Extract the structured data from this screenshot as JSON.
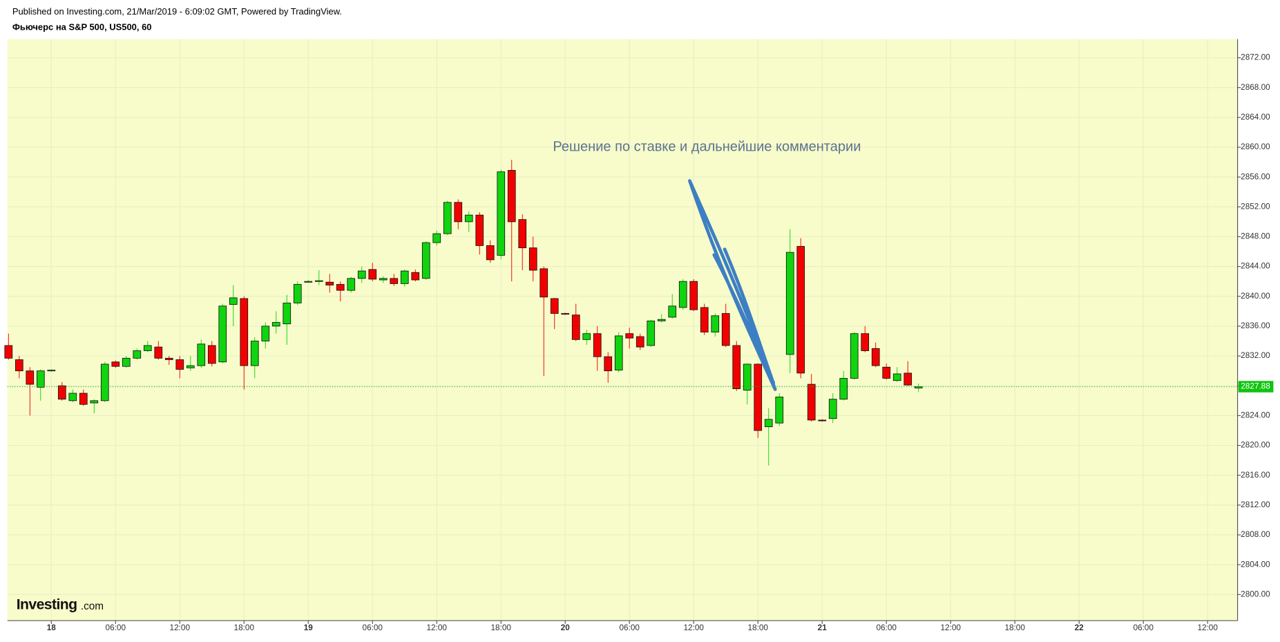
{
  "header": {
    "published": "Published on Investing.com, 21/Mar/2019 - 6:09:02 GMT, Powered by TradingView.",
    "symbol": "Фьючерс на S&P 500, US500, 60"
  },
  "logo": {
    "name": "Investing",
    "suffix": ".com"
  },
  "chart_data": {
    "type": "candlestick",
    "annotation": "Решение по ставке и дальнейшие комментарии",
    "up_color": "#10d40f",
    "down_color": "#f20000",
    "grid": true,
    "last_price": 2827.88,
    "last_price_color": "#10c40f",
    "x": [
      -4,
      -3,
      -2,
      -1,
      0,
      1,
      2,
      3,
      4,
      5,
      6,
      7,
      8,
      9,
      10,
      11,
      12,
      13,
      14,
      15,
      16,
      17,
      18,
      19,
      20,
      21,
      22,
      23,
      24,
      25,
      26,
      27,
      28,
      29,
      30,
      31,
      32,
      33,
      34,
      35,
      36,
      37,
      38,
      39,
      40,
      41,
      42,
      43,
      44,
      45,
      46,
      47,
      48,
      49,
      50,
      51,
      52,
      53,
      54,
      55,
      56,
      57,
      58,
      59,
      60,
      61,
      62,
      63,
      64,
      65,
      66,
      67,
      68,
      69,
      70,
      71,
      72,
      73,
      74,
      75,
      76,
      77,
      78,
      79,
      80,
      81
    ],
    "open": [
      2833.4,
      2831.5,
      2830,
      2827.8,
      2830,
      2828,
      2826,
      2827,
      2825.7,
      2826,
      2831.2,
      2830.6,
      2831.7,
      2832.7,
      2833.2,
      2831.7,
      2831.5,
      2830.4,
      2830.7,
      2833.4,
      2831.2,
      2838.9,
      2839.7,
      2830.7,
      2834,
      2836,
      2836.3,
      2839.1,
      2841.9,
      2842,
      2841.9,
      2841.6,
      2840.8,
      2842.4,
      2843.6,
      2842.2,
      2842.4,
      2841.7,
      2843.2,
      2842.4,
      2847.2,
      2848.4,
      2852.6,
      2850,
      2850.9,
      2846.8,
      2845.5,
      2856.9,
      2850.3,
      2846.5,
      2843.7,
      2839.7,
      2837.7,
      2837.5,
      2834.2,
      2835,
      2831.9,
      2830.1,
      2835,
      2834.6,
      2833.4,
      2836.7,
      2837.2,
      2838.5,
      2842,
      2838.5,
      2835.2,
      2837.7,
      2833.4,
      2827.4,
      2830.9,
      2822.5,
      2823,
      2832.2,
      2846.7,
      2828.2,
      2823.4,
      2823.6,
      2826.2,
      2829,
      2835,
      2833,
      2830.5,
      2828.7,
      2829.7,
      2827.7
    ],
    "high": [
      2835,
      2832,
      2830.5,
      2830.2,
      2830.2,
      2828.5,
      2827.5,
      2827.5,
      2826.2,
      2831.2,
      2831.4,
      2832,
      2833,
      2834,
      2834,
      2832,
      2832,
      2832,
      2834.2,
      2834,
      2839,
      2841.5,
      2840,
      2834.5,
      2836.5,
      2838,
      2840.2,
      2842,
      2842.2,
      2843.5,
      2843,
      2842,
      2842.6,
      2844,
      2844.5,
      2842.7,
      2843,
      2843.6,
      2843.6,
      2847.4,
      2848.8,
      2852.8,
      2853,
      2851.4,
      2851.3,
      2847.5,
      2857,
      2858.3,
      2851,
      2848,
      2844,
      2839.8,
      2837.8,
      2839,
      2835.5,
      2836,
      2832.5,
      2835.2,
      2835.8,
      2835,
      2836.8,
      2837.6,
      2840.3,
      2842.3,
      2842.3,
      2839,
      2837.7,
      2839,
      2834,
      2831,
      2831,
      2825,
      2827,
      2849,
      2847.8,
      2829.6,
      2823.5,
      2827,
      2830,
      2835.2,
      2836,
      2833.8,
      2831,
      2830.5,
      2831.3,
      2828.3
    ],
    "low": [
      2831.5,
      2829,
      2824,
      2826,
      2829.9,
      2826,
      2825.8,
      2825.3,
      2824.3,
      2825.8,
      2830.4,
      2830.4,
      2831.5,
      2832.5,
      2831.5,
      2830.8,
      2829,
      2830,
      2830.4,
      2830.6,
      2831,
      2836,
      2827.5,
      2829,
      2833,
      2835,
      2833.5,
      2838.8,
      2841.8,
      2841.5,
      2840.5,
      2839.3,
      2840.5,
      2841.8,
      2842,
      2841.8,
      2841.4,
      2841.3,
      2842,
      2842.2,
      2846.8,
      2848.2,
      2849,
      2848.6,
      2845.6,
      2844.5,
      2845,
      2842,
      2843.5,
      2842,
      2829.3,
      2835.6,
      2837.5,
      2834,
      2833.5,
      2830,
      2828.4,
      2829.8,
      2833,
      2832.8,
      2833.2,
      2836.5,
      2837,
      2838.2,
      2838,
      2834.8,
      2834.6,
      2833.2,
      2827.3,
      2825.5,
      2821,
      2817.3,
      2822.6,
      2829.7,
      2829,
      2823.2,
      2823.2,
      2823,
      2826,
      2828.8,
      2832.5,
      2830.5,
      2828.8,
      2828.5,
      2828,
      2827.2
    ],
    "close": [
      2831.7,
      2830,
      2828.2,
      2830,
      2830.1,
      2826.2,
      2827,
      2825.5,
      2826,
      2830.9,
      2830.6,
      2831.7,
      2832.7,
      2833.4,
      2831.7,
      2831.5,
      2830.2,
      2830.7,
      2833.6,
      2831,
      2838.7,
      2839.8,
      2830.7,
      2834,
      2836,
      2836.5,
      2839.1,
      2841.6,
      2842,
      2842.1,
      2841.5,
      2840.8,
      2842.4,
      2843.4,
      2842.3,
      2842.4,
      2841.7,
      2843.4,
      2842.2,
      2847.2,
      2848.4,
      2852.6,
      2850,
      2850.9,
      2846.8,
      2844.9,
      2856.7,
      2850,
      2846.5,
      2843.5,
      2839.9,
      2837.7,
      2837.6,
      2834.2,
      2835,
      2831.9,
      2830,
      2834.7,
      2834.4,
      2833.2,
      2836.7,
      2836.9,
      2838.7,
      2842,
      2838.2,
      2835.2,
      2837.4,
      2833.4,
      2827.6,
      2830.9,
      2822,
      2823.5,
      2826.5,
      2845.9,
      2829.7,
      2823.4,
      2823.3,
      2826.2,
      2829,
      2835,
      2832.7,
      2830.7,
      2829,
      2829.6,
      2828.1,
      2827.88
    ],
    "xlim": [
      -4.1,
      110.8
    ],
    "xticks": [
      {
        "value": 0,
        "label": "18"
      },
      {
        "value": 6,
        "label": "06:00"
      },
      {
        "value": 12,
        "label": "12:00"
      },
      {
        "value": 18,
        "label": "18:00"
      },
      {
        "value": 24,
        "label": "19"
      },
      {
        "value": 30,
        "label": "06:00"
      },
      {
        "value": 36,
        "label": "12:00"
      },
      {
        "value": 42,
        "label": "18:00"
      },
      {
        "value": 48,
        "label": "20"
      },
      {
        "value": 54,
        "label": "06:00"
      },
      {
        "value": 60,
        "label": "12:00"
      },
      {
        "value": 66,
        "label": "18:00"
      },
      {
        "value": 72,
        "label": "21"
      },
      {
        "value": 78,
        "label": "06:00"
      },
      {
        "value": 84,
        "label": "12:00"
      },
      {
        "value": 90,
        "label": "18:00"
      },
      {
        "value": 96,
        "label": "22"
      },
      {
        "value": 102,
        "label": "06:00"
      },
      {
        "value": 108,
        "label": "12:00"
      }
    ],
    "ylim": [
      2796.5,
      2874.5
    ],
    "yticks": [
      {
        "value": 2800,
        "label": "2800.00"
      },
      {
        "value": 2804,
        "label": "2804.00"
      },
      {
        "value": 2808,
        "label": "2808.00"
      },
      {
        "value": 2812,
        "label": "2812.00"
      },
      {
        "value": 2816,
        "label": "2816.00"
      },
      {
        "value": 2820,
        "label": "2820.00"
      },
      {
        "value": 2824,
        "label": "2824.00"
      },
      {
        "value": 2828,
        "label": "2828.00"
      },
      {
        "value": 2832,
        "label": "2832.00"
      },
      {
        "value": 2836,
        "label": "2836.00"
      },
      {
        "value": 2840,
        "label": "2840.00"
      },
      {
        "value": 2844,
        "label": "2844.00"
      },
      {
        "value": 2848,
        "label": "2848.00"
      },
      {
        "value": 2852,
        "label": "2852.00"
      },
      {
        "value": 2856,
        "label": "2856.00"
      },
      {
        "value": 2860,
        "label": "2860.00"
      },
      {
        "value": 2864,
        "label": "2864.00"
      },
      {
        "value": 2868,
        "label": "2868.00"
      },
      {
        "value": 2872,
        "label": "2872.00"
      }
    ]
  }
}
